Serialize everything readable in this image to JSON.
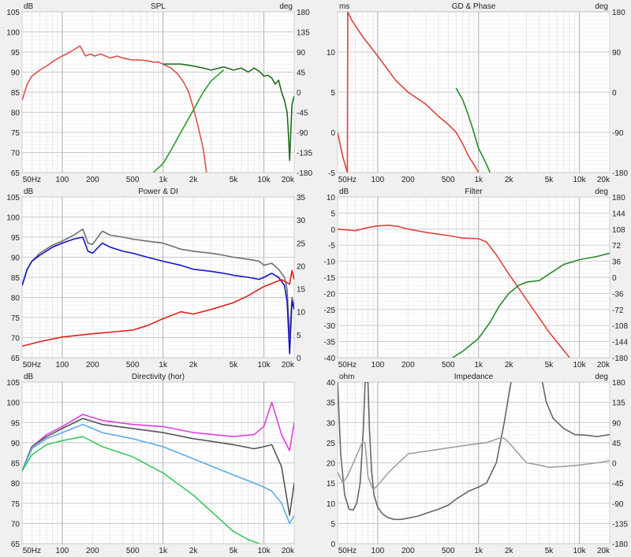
{
  "chart_data": [
    {
      "type": "line",
      "title": "SPL",
      "left_unit": "dB",
      "right_unit": "deg",
      "x_scale": "log",
      "xlim": [
        40,
        20000
      ],
      "x_ticks": [
        "50Hz",
        "100",
        "200",
        "500",
        "1k",
        "2k",
        "5k",
        "10k",
        "20k"
      ],
      "ylim": [
        65,
        105
      ],
      "y_ticks": [
        "65",
        "70",
        "75",
        "80",
        "85",
        "90",
        "95",
        "100",
        "105"
      ],
      "y2lim": [
        -180,
        180
      ],
      "y2_ticks": [
        "-180",
        "-135",
        "-90",
        "-45",
        "0",
        "45",
        "90",
        "135",
        "180"
      ],
      "series": [
        {
          "color": "#d9534f",
          "axis": "left",
          "x": [
            40,
            45,
            50,
            60,
            70,
            85,
            100,
            120,
            150,
            170,
            190,
            210,
            240,
            270,
            300,
            350,
            400,
            500,
            600,
            700,
            800,
            900,
            1000,
            1200,
            1400,
            1600,
            1800,
            2000,
            2200,
            2500,
            2700
          ],
          "y": [
            83,
            87,
            89,
            90.5,
            91.5,
            93,
            94,
            95,
            96.5,
            94,
            94.5,
            94,
            94.5,
            94,
            93.5,
            94,
            93.5,
            93,
            93,
            92.8,
            92.5,
            92.5,
            92,
            91,
            89.5,
            87.5,
            85,
            81,
            77,
            71,
            65
          ]
        },
        {
          "color": "#1e6b1e",
          "axis": "left",
          "x": [
            1000,
            1500,
            2000,
            2500,
            3000,
            4000,
            5000,
            6000,
            7000,
            8000,
            9000,
            10000,
            11000,
            12000,
            13000,
            14000,
            15000,
            16000,
            17000,
            17500,
            18000,
            19000,
            20000
          ],
          "y": [
            92,
            92,
            91.5,
            91,
            90.5,
            91.3,
            90.5,
            91,
            90,
            91,
            90.2,
            89,
            89.2,
            88.5,
            87,
            88,
            85,
            83,
            80,
            75,
            68,
            82,
            84
          ]
        },
        {
          "color": "#2a9d2a",
          "axis": "right",
          "x": [
            800,
            1000,
            1200,
            1500,
            2000,
            2500,
            3000,
            4000
          ],
          "y": [
            -180,
            -160,
            -130,
            -90,
            -40,
            0,
            25,
            50
          ]
        }
      ]
    },
    {
      "type": "line",
      "title": "GD & Phase",
      "left_unit": "ms",
      "right_unit": "deg",
      "x_scale": "log",
      "xlim": [
        40,
        20000
      ],
      "x_ticks": [
        "50Hz",
        "100",
        "200",
        "500",
        "1k",
        "2k",
        "5k",
        "10k",
        "20k"
      ],
      "ylim": [
        -5,
        15
      ],
      "y_ticks": [
        "-5",
        "0",
        "5",
        "10"
      ],
      "y2lim": [
        -180,
        180
      ],
      "y2_ticks": [
        "-180",
        "-90",
        "0",
        "90",
        "180"
      ],
      "series": [
        {
          "color": "#e0413a",
          "axis": "left",
          "x": [
            40,
            45,
            50,
            50.5,
            55,
            70,
            100,
            150,
            200,
            300,
            400,
            500,
            600,
            700,
            800,
            900,
            1000
          ],
          "y": [
            0,
            -3,
            -5,
            15,
            14,
            12,
            9.5,
            6.5,
            5,
            3.5,
            2,
            1,
            0,
            -1.5,
            -3,
            -4,
            -5
          ]
        },
        {
          "color": "#2a8a2a",
          "axis": "left",
          "x": [
            600,
            700,
            800,
            900,
            1000,
            1100,
            1200,
            1300
          ],
          "y": [
            5.5,
            4,
            2,
            0,
            -2,
            -3,
            -4,
            -5
          ]
        }
      ]
    },
    {
      "type": "line",
      "title": "Power & DI",
      "left_unit": "dB",
      "x_scale": "log",
      "xlim": [
        40,
        20000
      ],
      "x_ticks": [
        "50Hz",
        "100",
        "200",
        "500",
        "1k",
        "2k",
        "5k",
        "10k",
        "20k"
      ],
      "ylim": [
        65,
        105
      ],
      "y_ticks": [
        "65",
        "70",
        "75",
        "80",
        "85",
        "90",
        "95",
        "100",
        "105"
      ],
      "y2lim": [
        0,
        35
      ],
      "y2_ticks": [
        "0",
        "5",
        "10",
        "15",
        "20",
        "25",
        "30",
        "35"
      ],
      "series": [
        {
          "color": "#6e6e6e",
          "axis": "left",
          "x": [
            40,
            45,
            50,
            60,
            80,
            100,
            130,
            160,
            180,
            200,
            250,
            300,
            400,
            500,
            700,
            1000,
            1500,
            2000,
            3000,
            4000,
            5000,
            7000,
            9000,
            10000,
            12000,
            14000,
            16000,
            17000,
            18000,
            19000,
            20000
          ],
          "y": [
            83,
            87,
            89,
            91,
            93,
            94,
            95.5,
            97,
            93.5,
            93.2,
            96.5,
            95.5,
            95,
            94.5,
            94,
            93.5,
            92,
            91.5,
            91,
            90.5,
            90,
            89.5,
            89,
            88,
            88.5,
            87,
            85,
            82,
            70,
            80,
            78
          ]
        },
        {
          "color": "#1414c8",
          "axis": "left",
          "x": [
            40,
            45,
            50,
            60,
            80,
            100,
            130,
            160,
            180,
            200,
            250,
            300,
            400,
            500,
            700,
            1000,
            1500,
            2000,
            3000,
            4000,
            5000,
            7000,
            9000,
            10000,
            12000,
            14000,
            16000,
            17000,
            18000,
            19000,
            20000
          ],
          "y": [
            83,
            87,
            89,
            90.5,
            92.5,
            93.5,
            94.5,
            95,
            91.5,
            91,
            93.5,
            92.5,
            91.5,
            91,
            90,
            89,
            88,
            87,
            86.5,
            86,
            85.5,
            85,
            84.5,
            85,
            86,
            85,
            83,
            79,
            66,
            79,
            77
          ]
        },
        {
          "color": "#e0201a",
          "axis": "right",
          "x": [
            40,
            60,
            100,
            200,
            500,
            700,
            1000,
            1500,
            2000,
            3000,
            5000,
            7000,
            10000,
            15000,
            18000,
            19000,
            20000
          ],
          "y": [
            2.5,
            3.5,
            4.5,
            5.2,
            6,
            7,
            8.5,
            10,
            9.5,
            10.5,
            12,
            13.5,
            15.5,
            17,
            16,
            19,
            17
          ]
        }
      ]
    },
    {
      "type": "line",
      "title": "Filter",
      "left_unit": "dB",
      "right_unit": "deg",
      "x_scale": "log",
      "xlim": [
        40,
        20000
      ],
      "x_ticks": [
        "50Hz",
        "100",
        "200",
        "500",
        "1k",
        "2k",
        "5k",
        "10k",
        "20k"
      ],
      "ylim": [
        -40,
        10
      ],
      "y_ticks": [
        "-40",
        "-35",
        "-30",
        "-25",
        "-20",
        "-15",
        "-10",
        "-5",
        "0",
        "5",
        "10"
      ],
      "y2lim": [
        -180,
        180
      ],
      "y2_ticks": [
        "-180",
        "-144",
        "-108",
        "-72",
        "-36",
        "0",
        "36",
        "72",
        "108",
        "144",
        "180"
      ],
      "series": [
        {
          "color": "#e0413a",
          "axis": "left",
          "x": [
            40,
            60,
            80,
            100,
            130,
            160,
            200,
            300,
            500,
            700,
            1000,
            1200,
            1500,
            2000,
            3000,
            5000,
            8000
          ],
          "y": [
            0,
            -0.5,
            0.5,
            1,
            1.2,
            0.8,
            0,
            -1,
            -2,
            -2.8,
            -3,
            -4,
            -8,
            -14,
            -22,
            -32,
            -40
          ]
        },
        {
          "color": "#2a8a2a",
          "axis": "left",
          "x": [
            550,
            700,
            1000,
            1300,
            1600,
            2000,
            2500,
            3000,
            4000,
            5000,
            7000,
            10000,
            15000,
            20000
          ],
          "y": [
            -40,
            -38,
            -34,
            -29,
            -24,
            -20,
            -17.5,
            -16.5,
            -16,
            -14,
            -11,
            -9.5,
            -8.5,
            -7.5
          ]
        }
      ]
    },
    {
      "type": "line",
      "title": "Directivity (hor)",
      "left_unit": "dB",
      "x_scale": "log",
      "xlim": [
        40,
        20000
      ],
      "x_ticks": [
        "50Hz",
        "100",
        "200",
        "500",
        "1k",
        "2k",
        "5k",
        "10k",
        "20k"
      ],
      "ylim": [
        65,
        105
      ],
      "y_ticks": [
        "65",
        "70",
        "75",
        "80",
        "85",
        "90",
        "95",
        "100",
        "105"
      ],
      "series": [
        {
          "color": "#e040e0",
          "axis": "left",
          "x": [
            40,
            50,
            70,
            100,
            160,
            250,
            500,
            1000,
            2000,
            5000,
            8000,
            10000,
            12000,
            15000,
            18000,
            20000
          ],
          "y": [
            83,
            89,
            92,
            94,
            97,
            95.5,
            94.5,
            94,
            92.5,
            91.5,
            92,
            94,
            100,
            92,
            88,
            95
          ]
        },
        {
          "color": "#555555",
          "axis": "left",
          "x": [
            40,
            50,
            70,
            100,
            160,
            250,
            500,
            1000,
            2000,
            5000,
            8000,
            10000,
            12000,
            15000,
            18000,
            20000
          ],
          "y": [
            83,
            89,
            91.5,
            93.5,
            96,
            94.5,
            93.5,
            92.5,
            91,
            89.5,
            88.5,
            89,
            89.5,
            84,
            72,
            80
          ]
        },
        {
          "color": "#5aaee8",
          "axis": "left",
          "x": [
            40,
            50,
            70,
            100,
            160,
            250,
            500,
            1000,
            2000,
            5000,
            8000,
            10000,
            12000,
            15000,
            18000,
            20000
          ],
          "y": [
            83,
            88.5,
            91,
            92.5,
            94.5,
            92.5,
            91,
            89,
            86,
            82,
            80,
            79,
            78,
            75,
            70,
            72
          ]
        },
        {
          "color": "#3cc860",
          "axis": "left",
          "x": [
            40,
            50,
            70,
            100,
            160,
            250,
            500,
            1000,
            2000,
            3000,
            5000,
            7000,
            9000
          ],
          "y": [
            83,
            87,
            89.5,
            90.5,
            91.5,
            89,
            86.5,
            82.5,
            77,
            73,
            68,
            66,
            65
          ]
        }
      ]
    },
    {
      "type": "line",
      "title": "Impedance",
      "left_unit": "ohm",
      "right_unit": "deg",
      "x_scale": "log",
      "xlim": [
        40,
        20000
      ],
      "x_ticks": [
        "50Hz",
        "100",
        "200",
        "500",
        "1k",
        "2k",
        "5k",
        "10k",
        "20k"
      ],
      "ylim": [
        0,
        40
      ],
      "y_ticks": [
        "0",
        "5",
        "10",
        "15",
        "20",
        "25",
        "30",
        "35",
        "40"
      ],
      "y2lim": [
        -180,
        180
      ],
      "y2_ticks": [
        "-180",
        "-135",
        "-90",
        "-45",
        "0",
        "45",
        "90",
        "135",
        "180"
      ],
      "series": [
        {
          "color": "#666666",
          "axis": "left",
          "x": [
            40,
            43,
            47,
            52,
            57,
            62,
            67,
            72,
            75,
            78,
            80,
            83,
            87,
            92,
            100,
            110,
            125,
            145,
            170,
            200,
            250,
            300,
            400,
            500,
            600,
            800,
            1000,
            1200,
            1500,
            1800,
            2000,
            2100
          ],
          "y": [
            40,
            22,
            12,
            8.5,
            8.3,
            10,
            15,
            28,
            40,
            40,
            40,
            28,
            18,
            12,
            9,
            7.5,
            6.5,
            6,
            6,
            6.3,
            6.8,
            7.5,
            8.5,
            9.5,
            11,
            13,
            14,
            15,
            20,
            30,
            37,
            40
          ]
        },
        {
          "color": "#666666",
          "axis": "left",
          "x": [
            4300,
            4700,
            5500,
            7000,
            9000,
            12000,
            15000,
            20000
          ],
          "y": [
            40,
            35,
            31,
            28.5,
            27,
            26.8,
            26.5,
            27
          ]
        },
        {
          "color": "#a0a0a0",
          "axis": "right",
          "x": [
            40,
            45,
            50,
            60,
            70,
            75,
            80,
            90,
            100,
            130,
            200,
            400,
            800,
            1200,
            1600,
            1800,
            2000,
            2500,
            3000,
            4000,
            5000,
            7000,
            10000,
            15000,
            20000
          ],
          "y": [
            -20,
            -45,
            -30,
            10,
            45,
            45,
            -30,
            -60,
            -50,
            -20,
            20,
            30,
            40,
            45,
            55,
            55,
            45,
            20,
            0,
            -5,
            -10,
            -8,
            -5,
            0,
            5
          ]
        }
      ]
    }
  ]
}
